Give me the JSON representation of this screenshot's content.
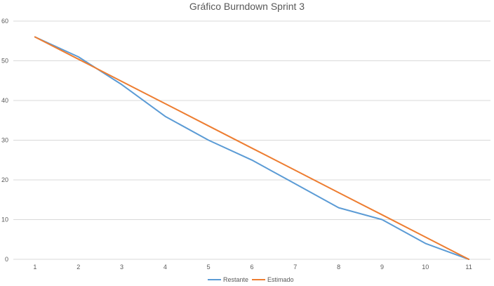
{
  "chart_data": {
    "type": "line",
    "title": "Gráfico Burndown Sprint 3",
    "xlabel": "",
    "ylabel": "",
    "categories": [
      "1",
      "2",
      "3",
      "4",
      "5",
      "6",
      "7",
      "8",
      "9",
      "10",
      "11"
    ],
    "ylim": [
      0,
      60
    ],
    "yticks": [
      0,
      10,
      20,
      30,
      40,
      50,
      60
    ],
    "grid": true,
    "legend_position": "bottom",
    "series": [
      {
        "name": "Restante",
        "color": "#5b9bd5",
        "values": [
          56,
          51,
          44,
          36,
          30,
          25,
          19,
          13,
          10,
          4,
          0
        ]
      },
      {
        "name": "Estimado",
        "color": "#ed7d31",
        "values": [
          56,
          50.4,
          44.8,
          39.2,
          33.6,
          28,
          22.4,
          16.8,
          11.2,
          5.6,
          0
        ]
      }
    ]
  }
}
